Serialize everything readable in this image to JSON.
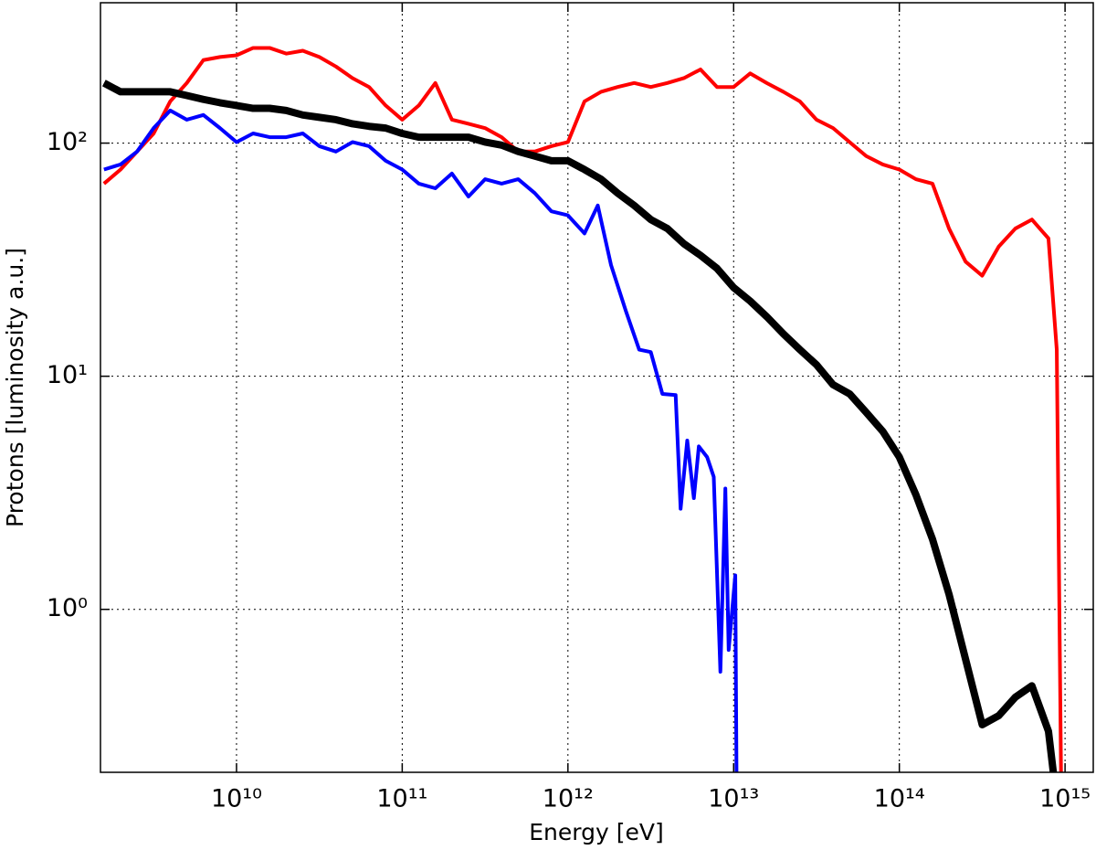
{
  "chart_data": {
    "type": "line",
    "xlabel": "Energy [eV]",
    "ylabel": "Protons [luminosity a.u.]",
    "xscale": "log",
    "yscale": "log",
    "grid": true,
    "xlim": [
      1510000000.0,
      1480000000000000.0
    ],
    "ylim": [
      0.2,
      400
    ],
    "xticks": [
      {
        "value": 10000000000.0,
        "label": "10¹⁰"
      },
      {
        "value": 100000000000.0,
        "label": "10¹¹"
      },
      {
        "value": 1000000000000.0,
        "label": "10¹²"
      },
      {
        "value": 10000000000000.0,
        "label": "10¹³"
      },
      {
        "value": 100000000000000.0,
        "label": "10¹⁴"
      },
      {
        "value": 1000000000000000.0,
        "label": "10¹⁵"
      }
    ],
    "yticks": [
      {
        "value": 1,
        "label": "10⁰"
      },
      {
        "value": 10,
        "label": "10¹"
      },
      {
        "value": 100,
        "label": "10²"
      }
    ],
    "series": [
      {
        "color": "#ff0000",
        "width": 4,
        "x": [
          1585000000.0,
          1995000000.0,
          2512000000.0,
          3162000000.0,
          3981000000.0,
          5012000000.0,
          6310000000.0,
          7943000000.0,
          10000000000.0,
          12590000000.0,
          15850000000.0,
          19950000000.0,
          25120000000.0,
          31620000000.0,
          39810000000.0,
          50120000000.0,
          63100000000.0,
          79430000000.0,
          100000000000.0,
          125900000000.0,
          158500000000.0,
          199500000000.0,
          251200000000.0,
          316200000000.0,
          398100000000.0,
          501200000000.0,
          631000000000.0,
          794300000000.0,
          1000000000000.0,
          1259000000000.0,
          1585000000000.0,
          1995000000000.0,
          2512000000000.0,
          3162000000000.0,
          3981000000000.0,
          5012000000000.0,
          6310000000000.0,
          7943000000000.0,
          10000000000000.0,
          12590000000000.0,
          15850000000000.0,
          19950000000000.0,
          25120000000000.0,
          31620000000000.0,
          39810000000000.0,
          50120000000000.0,
          63100000000000.0,
          79430000000000.0,
          100000000000000.0,
          125900000000000.0,
          158500000000000.0,
          199500000000000.0,
          251200000000000.0,
          316200000000000.0,
          398100000000000.0,
          501200000000000.0,
          631000000000000.0,
          794300000000000.0,
          891300000000000.0,
          955000000000000.0
        ],
        "values": [
          67,
          77,
          92,
          110,
          151,
          181,
          227,
          234,
          238,
          256,
          256,
          242,
          249,
          234,
          213,
          190,
          174,
          145,
          126,
          145,
          181,
          126,
          121,
          116,
          106,
          92,
          92,
          97,
          101,
          151,
          166,
          174,
          181,
          174,
          181,
          190,
          207,
          174,
          174,
          199,
          181,
          166,
          151,
          126,
          116,
          101,
          88,
          81,
          77,
          70,
          67,
          43,
          31,
          27,
          36,
          43,
          47,
          39,
          13,
          0.1
        ]
      },
      {
        "color": "#0000ff",
        "width": 4,
        "x": [
          1585000000.0,
          1995000000.0,
          2512000000.0,
          3162000000.0,
          3981000000.0,
          5012000000.0,
          6310000000.0,
          7943000000.0,
          10000000000.0,
          12590000000.0,
          15850000000.0,
          19950000000.0,
          25120000000.0,
          31620000000.0,
          39810000000.0,
          50120000000.0,
          63100000000.0,
          79430000000.0,
          100000000000.0,
          125900000000.0,
          158500000000.0,
          199500000000.0,
          251200000000.0,
          316200000000.0,
          398100000000.0,
          501200000000.0,
          631000000000.0,
          794300000000.0,
          1000000000000.0,
          1259000000000.0,
          1514000000000.0,
          1820000000000.0,
          2239000000000.0,
          2692000000000.0,
          3162000000000.0,
          3715000000000.0,
          4467000000000.0,
          4786000000000.0,
          5248000000000.0,
          5754000000000.0,
          6166000000000.0,
          6918000000000.0,
          7586000000000.0,
          8318000000000.0,
          8913000000000.0,
          9333000000000.0,
          10230000000000.0,
          10470000000000.0
        ],
        "values": [
          77,
          81,
          92,
          116,
          138,
          126,
          132,
          116,
          101,
          110,
          106,
          106,
          110,
          97,
          92,
          101,
          97,
          84,
          77,
          67,
          64,
          74,
          59,
          70,
          67,
          70,
          61,
          51,
          49,
          41,
          54,
          30,
          19,
          13,
          12.7,
          8.4,
          8.3,
          2.7,
          5.3,
          3.0,
          5,
          4.5,
          3.7,
          0.54,
          3.3,
          0.67,
          1.4,
          0.1
        ]
      },
      {
        "color": "#000000",
        "width": 8,
        "x": [
          1585000000.0,
          1995000000.0,
          2512000000.0,
          3162000000.0,
          3981000000.0,
          5012000000.0,
          6310000000.0,
          7943000000.0,
          10000000000.0,
          12590000000.0,
          15850000000.0,
          19950000000.0,
          25120000000.0,
          31620000000.0,
          39810000000.0,
          50120000000.0,
          63100000000.0,
          79430000000.0,
          100000000000.0,
          125900000000.0,
          158500000000.0,
          199500000000.0,
          251200000000.0,
          316200000000.0,
          398100000000.0,
          501200000000.0,
          631000000000.0,
          794300000000.0,
          1000000000000.0,
          1259000000000.0,
          1585000000000.0,
          1995000000000.0,
          2512000000000.0,
          3162000000000.0,
          3981000000000.0,
          5012000000000.0,
          6310000000000.0,
          7943000000000.0,
          10000000000000.0,
          12590000000000.0,
          15850000000000.0,
          19950000000000.0,
          25120000000000.0,
          31620000000000.0,
          39810000000000.0,
          50120000000000.0,
          63100000000000.0,
          79430000000000.0,
          100000000000000.0,
          125900000000000.0,
          158500000000000.0,
          199500000000000.0,
          251200000000000.0,
          316200000000000.0,
          398100000000000.0,
          501200000000000.0,
          631000000000000.0,
          794300000000000.0,
          891300000000000.0
        ],
        "values": [
          181,
          166,
          166,
          166,
          166,
          160,
          154,
          149,
          145,
          141,
          141,
          138,
          132,
          129,
          126,
          121,
          118,
          116,
          110,
          106,
          106,
          106,
          106,
          101,
          98,
          92,
          88,
          84,
          84,
          77,
          70,
          61,
          54,
          47,
          43,
          37,
          33,
          29,
          24,
          21,
          18,
          15.2,
          13,
          11.2,
          9.2,
          8.4,
          7,
          5.8,
          4.5,
          3.1,
          2,
          1.16,
          0.61,
          0.32,
          0.35,
          0.42,
          0.47,
          0.3,
          0.15
        ]
      }
    ]
  }
}
